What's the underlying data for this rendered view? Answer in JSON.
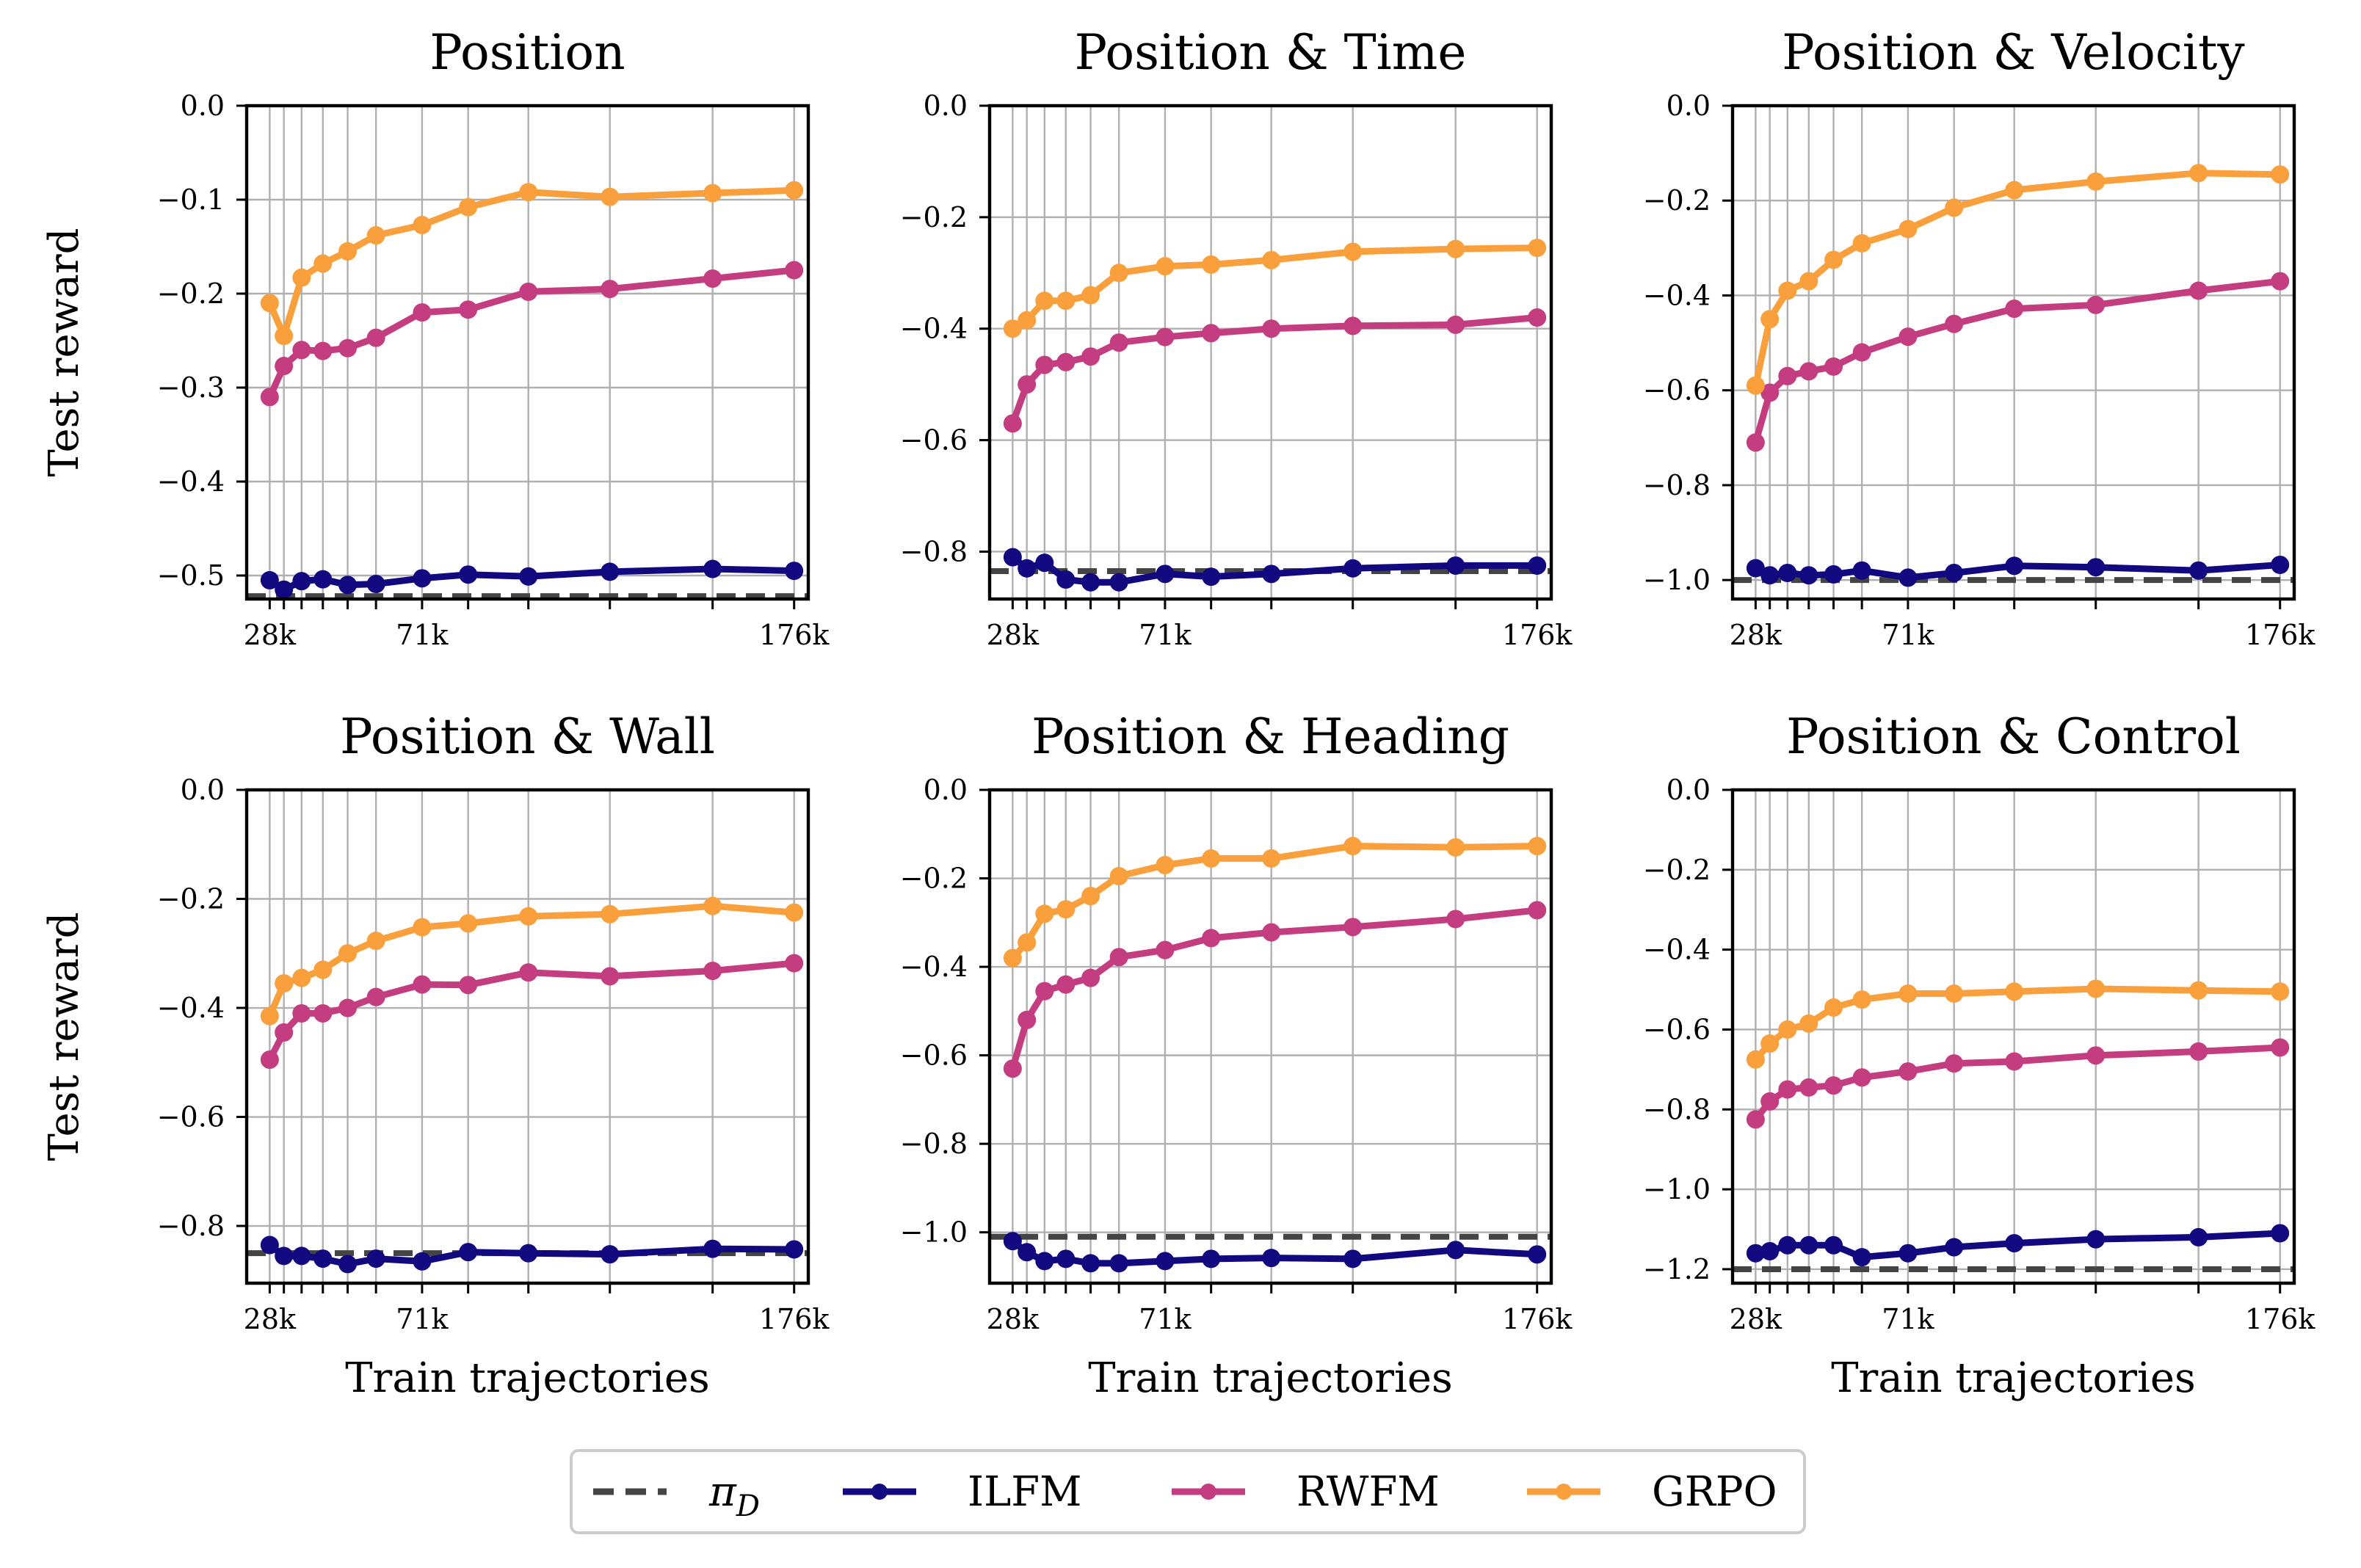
{
  "chart_data": [
    {
      "type": "line",
      "title": "Position",
      "ylabel": "Test reward",
      "xlabel": "",
      "ylim": [
        -0.525,
        0.0
      ],
      "yticks": [
        0.0,
        -0.1,
        -0.2,
        -0.3,
        -0.4,
        -0.5
      ],
      "ytick_labels": [
        "0.0",
        "−0.1",
        "−0.2",
        "−0.3",
        "−0.4",
        "−0.5"
      ],
      "x": [
        28,
        32,
        37,
        43,
        50,
        58,
        71,
        84,
        101,
        124,
        153,
        176
      ],
      "xtick_labels": [
        {
          "x": 28,
          "label": "28k"
        },
        {
          "x": 71,
          "label": "71k"
        },
        {
          "x": 176,
          "label": "176k"
        }
      ],
      "baseline": -0.522,
      "series": [
        {
          "name": "ILFM",
          "values": [
            -0.505,
            -0.515,
            -0.506,
            -0.504,
            -0.51,
            -0.509,
            -0.503,
            -0.499,
            -0.501,
            -0.496,
            -0.493,
            -0.495
          ]
        },
        {
          "name": "RWFM",
          "values": [
            -0.31,
            -0.277,
            -0.26,
            -0.261,
            -0.258,
            -0.247,
            -0.22,
            -0.217,
            -0.198,
            -0.195,
            -0.184,
            -0.175
          ]
        },
        {
          "name": "GRPO",
          "values": [
            -0.21,
            -0.245,
            -0.183,
            -0.168,
            -0.155,
            -0.138,
            -0.127,
            -0.108,
            -0.092,
            -0.097,
            -0.093,
            -0.09
          ]
        }
      ]
    },
    {
      "type": "line",
      "title": "Position & Time",
      "ylabel": "",
      "xlabel": "",
      "ylim": [
        -0.885,
        0.0
      ],
      "yticks": [
        0.0,
        -0.2,
        -0.4,
        -0.6,
        -0.8
      ],
      "ytick_labels": [
        "0.0",
        "−0.2",
        "−0.4",
        "−0.6",
        "−0.8"
      ],
      "x": [
        28,
        32,
        37,
        43,
        50,
        58,
        71,
        84,
        101,
        124,
        153,
        176
      ],
      "xtick_labels": [
        {
          "x": 28,
          "label": "28k"
        },
        {
          "x": 71,
          "label": "71k"
        },
        {
          "x": 176,
          "label": "176k"
        }
      ],
      "baseline": -0.835,
      "series": [
        {
          "name": "ILFM",
          "values": [
            -0.81,
            -0.83,
            -0.82,
            -0.85,
            -0.855,
            -0.855,
            -0.84,
            -0.845,
            -0.84,
            -0.83,
            -0.825,
            -0.825
          ]
        },
        {
          "name": "RWFM",
          "values": [
            -0.57,
            -0.5,
            -0.465,
            -0.46,
            -0.45,
            -0.425,
            -0.415,
            -0.408,
            -0.4,
            -0.395,
            -0.393,
            -0.38
          ]
        },
        {
          "name": "GRPO",
          "values": [
            -0.4,
            -0.385,
            -0.35,
            -0.35,
            -0.34,
            -0.3,
            -0.288,
            -0.285,
            -0.277,
            -0.262,
            -0.257,
            -0.255
          ]
        }
      ]
    },
    {
      "type": "line",
      "title": "Position & Velocity",
      "ylabel": "",
      "xlabel": "",
      "ylim": [
        -1.04,
        0.0
      ],
      "yticks": [
        0.0,
        -0.2,
        -0.4,
        -0.6,
        -0.8,
        -1.0
      ],
      "ytick_labels": [
        "0.0",
        "−0.2",
        "−0.4",
        "−0.6",
        "−0.8",
        "−1.0"
      ],
      "x": [
        28,
        32,
        37,
        43,
        50,
        58,
        71,
        84,
        101,
        124,
        153,
        176
      ],
      "xtick_labels": [
        {
          "x": 28,
          "label": "28k"
        },
        {
          "x": 71,
          "label": "71k"
        },
        {
          "x": 176,
          "label": "176k"
        }
      ],
      "baseline": -1.0,
      "series": [
        {
          "name": "ILFM",
          "values": [
            -0.975,
            -0.99,
            -0.985,
            -0.99,
            -0.988,
            -0.98,
            -0.995,
            -0.985,
            -0.97,
            -0.973,
            -0.98,
            -0.968
          ]
        },
        {
          "name": "RWFM",
          "values": [
            -0.71,
            -0.605,
            -0.57,
            -0.56,
            -0.55,
            -0.52,
            -0.487,
            -0.46,
            -0.428,
            -0.42,
            -0.39,
            -0.37
          ]
        },
        {
          "name": "GRPO",
          "values": [
            -0.59,
            -0.45,
            -0.39,
            -0.37,
            -0.325,
            -0.29,
            -0.26,
            -0.215,
            -0.178,
            -0.16,
            -0.142,
            -0.145
          ]
        }
      ]
    },
    {
      "type": "line",
      "title": "Position & Wall",
      "ylabel": "Test reward",
      "xlabel": "Train trajectories",
      "ylim": [
        -0.905,
        0.0
      ],
      "yticks": [
        0.0,
        -0.2,
        -0.4,
        -0.6,
        -0.8
      ],
      "ytick_labels": [
        "0.0",
        "−0.2",
        "−0.4",
        "−0.6",
        "−0.8"
      ],
      "x": [
        28,
        32,
        37,
        43,
        50,
        58,
        71,
        84,
        101,
        124,
        153,
        176
      ],
      "xtick_labels": [
        {
          "x": 28,
          "label": "28k"
        },
        {
          "x": 71,
          "label": "71k"
        },
        {
          "x": 176,
          "label": "176k"
        }
      ],
      "baseline": -0.85,
      "series": [
        {
          "name": "ILFM",
          "values": [
            -0.835,
            -0.855,
            -0.855,
            -0.86,
            -0.87,
            -0.86,
            -0.865,
            -0.848,
            -0.85,
            -0.852,
            -0.842,
            -0.843
          ]
        },
        {
          "name": "RWFM",
          "values": [
            -0.495,
            -0.445,
            -0.41,
            -0.41,
            -0.4,
            -0.38,
            -0.357,
            -0.358,
            -0.335,
            -0.342,
            -0.332,
            -0.318
          ]
        },
        {
          "name": "GRPO",
          "values": [
            -0.415,
            -0.355,
            -0.345,
            -0.33,
            -0.3,
            -0.277,
            -0.252,
            -0.245,
            -0.232,
            -0.228,
            -0.213,
            -0.225
          ]
        }
      ]
    },
    {
      "type": "line",
      "title": "Position & Heading",
      "ylabel": "",
      "xlabel": "Train trajectories",
      "ylim": [
        -1.115,
        0.0
      ],
      "yticks": [
        0.0,
        -0.2,
        -0.4,
        -0.6,
        -0.8,
        -1.0
      ],
      "ytick_labels": [
        "0.0",
        "−0.2",
        "−0.4",
        "−0.6",
        "−0.8",
        "−1.0"
      ],
      "x": [
        28,
        32,
        37,
        43,
        50,
        58,
        71,
        84,
        101,
        124,
        153,
        176
      ],
      "xtick_labels": [
        {
          "x": 28,
          "label": "28k"
        },
        {
          "x": 71,
          "label": "71k"
        },
        {
          "x": 176,
          "label": "176k"
        }
      ],
      "baseline": -1.01,
      "series": [
        {
          "name": "ILFM",
          "values": [
            -1.02,
            -1.045,
            -1.065,
            -1.06,
            -1.07,
            -1.07,
            -1.065,
            -1.06,
            -1.058,
            -1.06,
            -1.04,
            -1.05
          ]
        },
        {
          "name": "RWFM",
          "values": [
            -0.63,
            -0.52,
            -0.455,
            -0.44,
            -0.425,
            -0.378,
            -0.362,
            -0.335,
            -0.322,
            -0.31,
            -0.292,
            -0.272
          ]
        },
        {
          "name": "GRPO",
          "values": [
            -0.38,
            -0.345,
            -0.28,
            -0.27,
            -0.24,
            -0.195,
            -0.17,
            -0.155,
            -0.155,
            -0.127,
            -0.13,
            -0.127
          ]
        }
      ]
    },
    {
      "type": "line",
      "title": "Position & Control",
      "ylabel": "",
      "xlabel": "Train trajectories",
      "ylim": [
        -1.235,
        0.0
      ],
      "yticks": [
        0.0,
        -0.2,
        -0.4,
        -0.6,
        -0.8,
        -1.0,
        -1.2
      ],
      "ytick_labels": [
        "0.0",
        "−0.2",
        "−0.4",
        "−0.6",
        "−0.8",
        "−1.0",
        "−1.2"
      ],
      "x": [
        28,
        32,
        37,
        43,
        50,
        58,
        71,
        84,
        101,
        124,
        153,
        176
      ],
      "xtick_labels": [
        {
          "x": 28,
          "label": "28k"
        },
        {
          "x": 71,
          "label": "71k"
        },
        {
          "x": 176,
          "label": "176k"
        }
      ],
      "baseline": -1.2,
      "series": [
        {
          "name": "ILFM",
          "values": [
            -1.16,
            -1.155,
            -1.14,
            -1.14,
            -1.14,
            -1.17,
            -1.16,
            -1.145,
            -1.135,
            -1.125,
            -1.12,
            -1.11
          ]
        },
        {
          "name": "RWFM",
          "values": [
            -0.825,
            -0.78,
            -0.75,
            -0.745,
            -0.74,
            -0.72,
            -0.705,
            -0.685,
            -0.68,
            -0.665,
            -0.655,
            -0.645
          ]
        },
        {
          "name": "GRPO",
          "values": [
            -0.675,
            -0.635,
            -0.6,
            -0.585,
            -0.545,
            -0.525,
            -0.51,
            -0.51,
            -0.505,
            -0.498,
            -0.502,
            -0.505
          ]
        }
      ]
    }
  ],
  "legend": {
    "location": "bottom-center",
    "entries": [
      {
        "label": "π",
        "subscript": "D",
        "style": "dashed"
      },
      {
        "label": "ILFM",
        "style": "line-marker"
      },
      {
        "label": "RWFM",
        "style": "line-marker"
      },
      {
        "label": "GRPO",
        "style": "line-marker"
      }
    ]
  },
  "colors": {
    "baseline": "#444444",
    "ILFM": "#12087f",
    "RWFM": "#c33d80",
    "GRPO": "#f9a03c",
    "grid": "#b0b0b0"
  }
}
